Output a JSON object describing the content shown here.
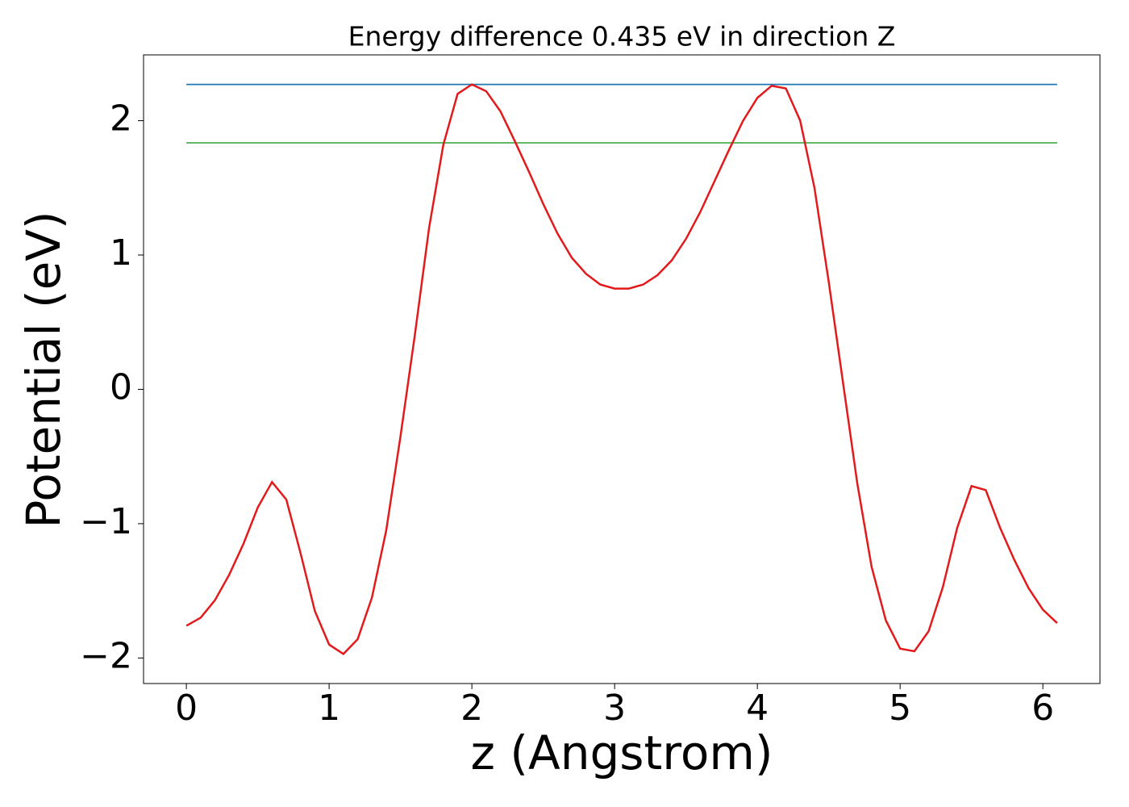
{
  "chart_data": {
    "type": "line",
    "title": "Energy difference 0.435 eV in direction Z",
    "x_label": "z (Angstrom)",
    "y_label": "Potential (eV)",
    "xlim": [
      -0.3,
      6.4
    ],
    "ylim": [
      -2.19,
      2.49
    ],
    "xticks": [
      0,
      1,
      2,
      3,
      4,
      5,
      6
    ],
    "yticks": [
      {
        "value": -2,
        "label": "−2"
      },
      {
        "value": -1,
        "label": "−1"
      },
      0,
      1,
      2
    ],
    "grid": false,
    "series": [
      {
        "color": "#1f77b4",
        "x": [
          0,
          6.1
        ],
        "values": [
          2.27,
          2.27
        ]
      },
      {
        "color": "#4caf50",
        "x": [
          0,
          6.1
        ],
        "values": [
          1.835,
          1.835
        ]
      },
      {
        "color": "#e31a1c",
        "x": [
          0,
          0.1,
          0.2,
          0.3,
          0.4,
          0.5,
          0.6,
          0.7,
          0.8,
          0.9,
          1.0,
          1.1,
          1.2,
          1.3,
          1.4,
          1.5,
          1.6,
          1.7,
          1.8,
          1.9,
          2.0,
          2.1,
          2.2,
          2.3,
          2.4,
          2.5,
          2.6,
          2.7,
          2.8,
          2.9,
          3.0,
          3.1,
          3.2,
          3.3,
          3.4,
          3.5,
          3.6,
          3.7,
          3.8,
          3.9,
          4.0,
          4.1,
          4.2,
          4.3,
          4.4,
          4.5,
          4.6,
          4.7,
          4.8,
          4.9,
          5.0,
          5.1,
          5.2,
          5.3,
          5.4,
          5.5,
          5.6,
          5.7,
          5.8,
          5.9,
          6.0,
          6.1
        ],
        "values": [
          -1.76,
          -1.7,
          -1.57,
          -1.38,
          -1.15,
          -0.88,
          -0.69,
          -0.82,
          -1.22,
          -1.65,
          -1.9,
          -1.97,
          -1.86,
          -1.55,
          -1.05,
          -0.35,
          0.4,
          1.2,
          1.82,
          2.2,
          2.27,
          2.22,
          2.07,
          1.85,
          1.62,
          1.38,
          1.16,
          0.98,
          0.86,
          0.78,
          0.75,
          0.75,
          0.78,
          0.85,
          0.96,
          1.12,
          1.32,
          1.55,
          1.78,
          2.0,
          2.17,
          2.26,
          2.24,
          2.0,
          1.5,
          0.8,
          0.05,
          -0.7,
          -1.32,
          -1.72,
          -1.93,
          -1.95,
          -1.8,
          -1.47,
          -1.03,
          -0.72,
          -0.75,
          -1.03,
          -1.27,
          -1.48,
          -1.64,
          -1.74
        ]
      }
    ]
  }
}
